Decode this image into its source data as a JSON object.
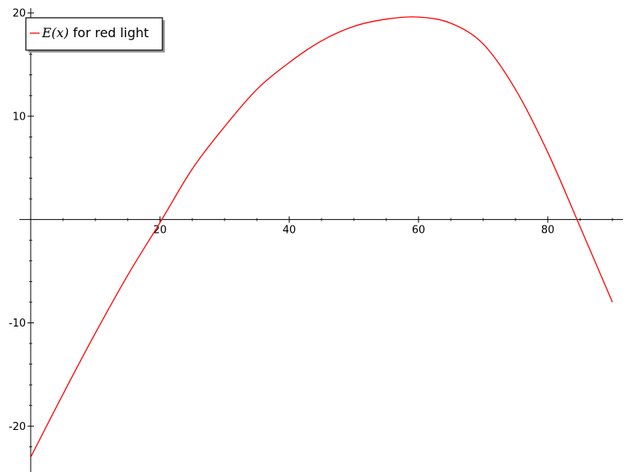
{
  "chart_data": {
    "type": "line",
    "title": "",
    "xlabel": "",
    "ylabel": "",
    "xlim": [
      0,
      90
    ],
    "ylim": [
      -23.5,
      20.0
    ],
    "grid": false,
    "legend_placement": "top-left",
    "x_ticks": [
      20,
      40,
      60,
      80
    ],
    "x_tick_labels": [
      "20",
      "40",
      "60",
      "80"
    ],
    "y_ticks": [
      -20,
      -10,
      10,
      20
    ],
    "y_tick_labels": [
      "-20",
      "-10",
      "10",
      "20"
    ],
    "series": [
      {
        "name": "E(x) for red light",
        "legend_math": "E(x)",
        "legend_suffix": " for red light",
        "color": "#ff0000",
        "x": [
          0,
          5,
          10,
          15,
          20,
          25,
          30,
          35,
          40,
          45,
          50,
          55,
          60,
          65,
          70,
          75,
          80,
          85,
          90
        ],
        "y": [
          -23.0,
          -16.9,
          -11.0,
          -5.4,
          -0.3,
          4.9,
          9.0,
          12.6,
          15.2,
          17.3,
          18.7,
          19.4,
          19.6,
          19.0,
          17.0,
          12.6,
          6.5,
          -0.7,
          -8.0
        ]
      }
    ]
  }
}
